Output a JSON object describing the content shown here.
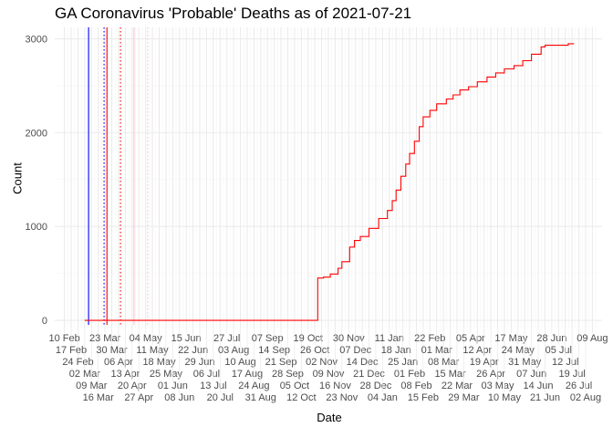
{
  "chart_data": {
    "type": "line",
    "style": "step",
    "title": "GA Coronavirus 'Probable' Deaths as of 2021-07-21",
    "xlabel": "Date",
    "ylabel": "Count",
    "xlim": [
      "2020-01-31",
      "2021-08-19"
    ],
    "ylim": [
      -87,
      3122
    ],
    "grid": true,
    "line_color": "#ff0000",
    "y_ticks": [
      0,
      1000,
      2000,
      3000
    ],
    "x_tick_start": "2020-02-10",
    "x_tick_labels": [
      "10 Feb",
      "17 Feb",
      "24 Feb",
      "02 Mar",
      "09 Mar",
      "16 Mar",
      "23 Mar",
      "30 Mar",
      "06 Apr",
      "13 Apr",
      "20 Apr",
      "27 Apr",
      "04 May",
      "11 May",
      "18 May",
      "25 May",
      "01 Jun",
      "08 Jun",
      "15 Jun",
      "22 Jun",
      "29 Jun",
      "06 Jul",
      "13 Jul",
      "20 Jul",
      "27 Jul",
      "03 Aug",
      "10 Aug",
      "17 Aug",
      "24 Aug",
      "31 Aug",
      "07 Sep",
      "14 Sep",
      "21 Sep",
      "28 Sep",
      "05 Oct",
      "12 Oct",
      "19 Oct",
      "26 Oct",
      "02 Nov",
      "09 Nov",
      "16 Nov",
      "23 Nov",
      "30 Nov",
      "07 Dec",
      "14 Dec",
      "21 Dec",
      "28 Dec",
      "04 Jan",
      "11 Jan",
      "18 Jan",
      "25 Jan",
      "01 Feb",
      "08 Feb",
      "15 Feb",
      "22 Feb",
      "01 Mar",
      "08 Mar",
      "15 Mar",
      "22 Mar",
      "29 Mar",
      "05 Apr",
      "12 Apr",
      "19 Apr",
      "26 Apr",
      "03 May",
      "10 May",
      "17 May",
      "24 May",
      "31 May",
      "07 Jun",
      "14 Jun",
      "21 Jun",
      "28 Jun",
      "05 Jul",
      "12 Jul",
      "19 Jul",
      "26 Jul",
      "02 Aug",
      "09 Aug"
    ],
    "points": [
      [
        "2020-03-02",
        0
      ],
      [
        "2020-10-28",
        0
      ],
      [
        "2020-10-29",
        451
      ],
      [
        "2020-11-04",
        460
      ],
      [
        "2020-11-11",
        494
      ],
      [
        "2020-11-19",
        555
      ],
      [
        "2020-11-23",
        625
      ],
      [
        "2020-12-01",
        780
      ],
      [
        "2020-12-06",
        850
      ],
      [
        "2020-12-12",
        893
      ],
      [
        "2020-12-21",
        980
      ],
      [
        "2020-12-31",
        1085
      ],
      [
        "2021-01-09",
        1170
      ],
      [
        "2021-01-14",
        1275
      ],
      [
        "2021-01-18",
        1388
      ],
      [
        "2021-01-23",
        1535
      ],
      [
        "2021-01-28",
        1665
      ],
      [
        "2021-02-01",
        1778
      ],
      [
        "2021-02-06",
        1908
      ],
      [
        "2021-02-11",
        2064
      ],
      [
        "2021-02-15",
        2168
      ],
      [
        "2021-02-22",
        2238
      ],
      [
        "2021-03-01",
        2307
      ],
      [
        "2021-03-11",
        2359
      ],
      [
        "2021-03-18",
        2402
      ],
      [
        "2021-03-25",
        2455
      ],
      [
        "2021-04-03",
        2490
      ],
      [
        "2021-04-12",
        2541
      ],
      [
        "2021-04-22",
        2593
      ],
      [
        "2021-05-01",
        2637
      ],
      [
        "2021-05-10",
        2680
      ],
      [
        "2021-05-20",
        2715
      ],
      [
        "2021-05-29",
        2767
      ],
      [
        "2021-06-07",
        2836
      ],
      [
        "2021-06-17",
        2914
      ],
      [
        "2021-06-21",
        2931
      ],
      [
        "2021-07-13",
        2931
      ],
      [
        "2021-07-15",
        2948
      ],
      [
        "2021-07-21",
        2948
      ]
    ],
    "vlines": [
      {
        "date": "2020-03-06",
        "color": "#0000ff",
        "style": "solid"
      },
      {
        "date": "2020-03-22",
        "color": "#0000ff",
        "style": "dotted"
      },
      {
        "date": "2020-03-25",
        "color": "#ff0000",
        "style": "solid"
      },
      {
        "date": "2020-04-08",
        "color": "#ff0000",
        "style": "dotted"
      },
      {
        "date": "2020-04-22",
        "color": "#ffc0cb",
        "style": "solid"
      },
      {
        "date": "2020-05-06",
        "color": "#ffc0cb",
        "style": "dotted"
      }
    ]
  }
}
